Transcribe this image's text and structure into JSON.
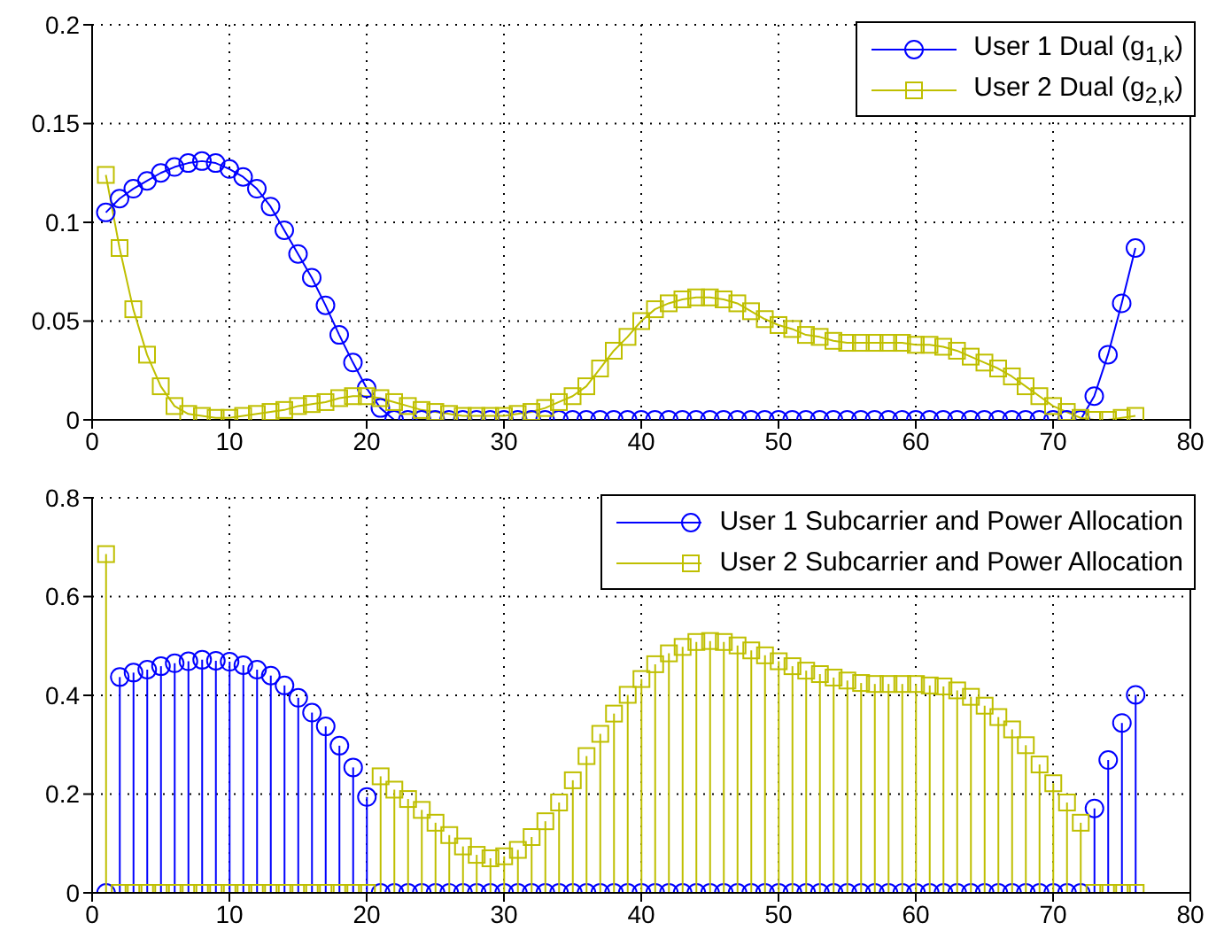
{
  "chart_data": [
    {
      "type": "line",
      "x": [
        1,
        2,
        3,
        4,
        5,
        6,
        7,
        8,
        9,
        10,
        11,
        12,
        13,
        14,
        15,
        16,
        17,
        18,
        19,
        20,
        21,
        22,
        23,
        24,
        25,
        26,
        27,
        28,
        29,
        30,
        31,
        32,
        33,
        34,
        35,
        36,
        37,
        38,
        39,
        40,
        41,
        42,
        43,
        44,
        45,
        46,
        47,
        48,
        49,
        50,
        51,
        52,
        53,
        54,
        55,
        56,
        57,
        58,
        59,
        60,
        61,
        62,
        63,
        64,
        65,
        66,
        67,
        68,
        69,
        70,
        71,
        72,
        73,
        74,
        75,
        76
      ],
      "series": [
        {
          "name": "User 1 Dual (g$_{1,k}$)",
          "color": "#0000ff",
          "marker": "circle",
          "values": [
            0.105,
            0.112,
            0.117,
            0.121,
            0.125,
            0.128,
            0.13,
            0.131,
            0.13,
            0.127,
            0.123,
            0.117,
            0.108,
            0.096,
            0.084,
            0.072,
            0.058,
            0.043,
            0.029,
            0.016,
            0.006,
            0,
            0,
            0,
            0,
            0,
            0,
            0,
            0,
            0,
            0,
            0,
            0,
            0,
            0,
            0,
            0,
            0,
            0,
            0,
            0,
            0,
            0,
            0,
            0,
            0,
            0,
            0,
            0,
            0,
            0,
            0,
            0,
            0,
            0,
            0,
            0,
            0,
            0,
            0,
            0,
            0,
            0,
            0,
            0,
            0,
            0,
            0,
            0,
            0,
            0,
            0,
            0.012,
            0.033,
            0.059,
            0.087
          ]
        },
        {
          "name": "User 2 Dual (g$_{2,k}$)",
          "color": "#bfbf00",
          "marker": "square",
          "values": [
            0.124,
            0.087,
            0.056,
            0.033,
            0.017,
            0.007,
            0.003,
            0.002,
            0.001,
            0.001,
            0.002,
            0.003,
            0.004,
            0.005,
            0.007,
            0.008,
            0.009,
            0.011,
            0.012,
            0.012,
            0.011,
            0.009,
            0.007,
            0.005,
            0.004,
            0.003,
            0.002,
            0.002,
            0.002,
            0.002,
            0.003,
            0.004,
            0.006,
            0.009,
            0.012,
            0.017,
            0.026,
            0.035,
            0.042,
            0.05,
            0.056,
            0.059,
            0.061,
            0.062,
            0.062,
            0.061,
            0.059,
            0.055,
            0.051,
            0.048,
            0.046,
            0.043,
            0.042,
            0.04,
            0.039,
            0.039,
            0.039,
            0.039,
            0.039,
            0.038,
            0.038,
            0.037,
            0.035,
            0.032,
            0.029,
            0.026,
            0.022,
            0.017,
            0.012,
            0.007,
            0.004,
            0.001,
            0,
            0,
            0.001,
            0.002
          ]
        }
      ],
      "xlim": [
        0,
        80
      ],
      "xticks": [
        0,
        10,
        20,
        30,
        40,
        50,
        60,
        70,
        80
      ],
      "ylim": [
        0,
        0.2
      ],
      "yticks": [
        0,
        0.05,
        0.1,
        0.15,
        0.2
      ],
      "grid": true,
      "legend": "top right",
      "line_style": "solid"
    },
    {
      "type": "lollipop",
      "x": [
        1,
        2,
        3,
        4,
        5,
        6,
        7,
        8,
        9,
        10,
        11,
        12,
        13,
        14,
        15,
        16,
        17,
        18,
        19,
        20,
        21,
        22,
        23,
        24,
        25,
        26,
        27,
        28,
        29,
        30,
        31,
        32,
        33,
        34,
        35,
        36,
        37,
        38,
        39,
        40,
        41,
        42,
        43,
        44,
        45,
        46,
        47,
        48,
        49,
        50,
        51,
        52,
        53,
        54,
        55,
        56,
        57,
        58,
        59,
        60,
        61,
        62,
        63,
        64,
        65,
        66,
        67,
        68,
        69,
        70,
        71,
        72,
        73,
        74,
        75,
        76
      ],
      "series": [
        {
          "name": "User 1 Subcarrier and Power Allocation",
          "color": "#0000ff",
          "marker": "circle",
          "values": [
            0,
            0.437,
            0.446,
            0.452,
            0.459,
            0.465,
            0.469,
            0.472,
            0.47,
            0.468,
            0.461,
            0.452,
            0.44,
            0.42,
            0.395,
            0.365,
            0.337,
            0.298,
            0.254,
            0.194,
            0,
            0,
            0,
            0,
            0,
            0,
            0,
            0,
            0,
            0,
            0,
            0,
            0,
            0,
            0,
            0,
            0,
            0,
            0,
            0,
            0,
            0,
            0,
            0,
            0,
            0,
            0,
            0,
            0,
            0,
            0,
            0,
            0,
            0,
            0,
            0,
            0,
            0,
            0,
            0,
            0,
            0,
            0,
            0,
            0,
            0,
            0,
            0,
            0,
            0,
            0,
            0,
            0.171,
            0.269,
            0.344,
            0.401
          ]
        },
        {
          "name": "User 2 Subcarrier and Power Allocation",
          "color": "#bfbf00",
          "marker": "square",
          "values": [
            0.686,
            0,
            0,
            0,
            0,
            0,
            0,
            0,
            0,
            0,
            0,
            0,
            0,
            0,
            0,
            0,
            0,
            0,
            0,
            0,
            0.236,
            0.209,
            0.19,
            0.168,
            0.142,
            0.117,
            0.094,
            0.077,
            0.07,
            0.074,
            0.087,
            0.113,
            0.145,
            0.183,
            0.228,
            0.277,
            0.322,
            0.363,
            0.401,
            0.433,
            0.463,
            0.485,
            0.498,
            0.508,
            0.51,
            0.508,
            0.501,
            0.491,
            0.481,
            0.469,
            0.459,
            0.45,
            0.443,
            0.436,
            0.43,
            0.425,
            0.423,
            0.423,
            0.423,
            0.423,
            0.42,
            0.418,
            0.41,
            0.397,
            0.379,
            0.356,
            0.331,
            0.299,
            0.26,
            0.222,
            0.183,
            0.142,
            0,
            0,
            0,
            0
          ]
        }
      ],
      "xlim": [
        0,
        80
      ],
      "xticks": [
        0,
        10,
        20,
        30,
        40,
        50,
        60,
        70,
        80
      ],
      "ylim": [
        0,
        0.8
      ],
      "yticks": [
        0,
        0.2,
        0.4,
        0.6,
        0.8
      ],
      "grid": true,
      "legend": "top right",
      "line_style": "solid"
    }
  ]
}
